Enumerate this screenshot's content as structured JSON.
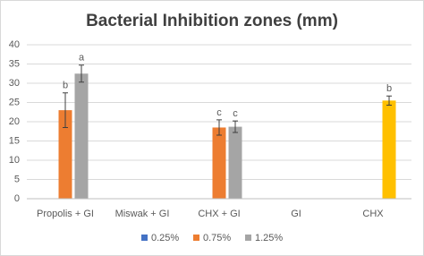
{
  "chart_data": {
    "type": "bar",
    "title": "Bacterial Inhibition zones (mm)",
    "categories": [
      "Propolis + GI",
      "Miswak + GI",
      "CHX + GI",
      "GI",
      "CHX"
    ],
    "series": [
      {
        "name": "0.25%",
        "color": "#4472c4",
        "values": [
          null,
          null,
          null,
          null,
          null
        ],
        "errors": [
          null,
          null,
          null,
          null,
          null
        ],
        "letters": [
          null,
          null,
          null,
          null,
          null
        ]
      },
      {
        "name": "0.75%",
        "color": "#ed7d31",
        "values": [
          23,
          null,
          18.5,
          null,
          null
        ],
        "errors": [
          4.5,
          null,
          2,
          null,
          null
        ],
        "letters": [
          "b",
          null,
          "c",
          null,
          null
        ]
      },
      {
        "name": "1.25%",
        "color": "#a5a5a5",
        "values": [
          32.5,
          null,
          18.7,
          null,
          25.5
        ],
        "errors": [
          2.2,
          null,
          1.5,
          null,
          1.2
        ],
        "letters": [
          "a",
          null,
          "c",
          null,
          "b"
        ],
        "colors": [
          null,
          null,
          null,
          null,
          "#ffc000"
        ]
      }
    ],
    "ylim": [
      0,
      40
    ],
    "yticks": [
      0,
      5,
      10,
      15,
      20,
      25,
      30,
      35,
      40
    ],
    "grid": true,
    "legend": "bottom"
  }
}
